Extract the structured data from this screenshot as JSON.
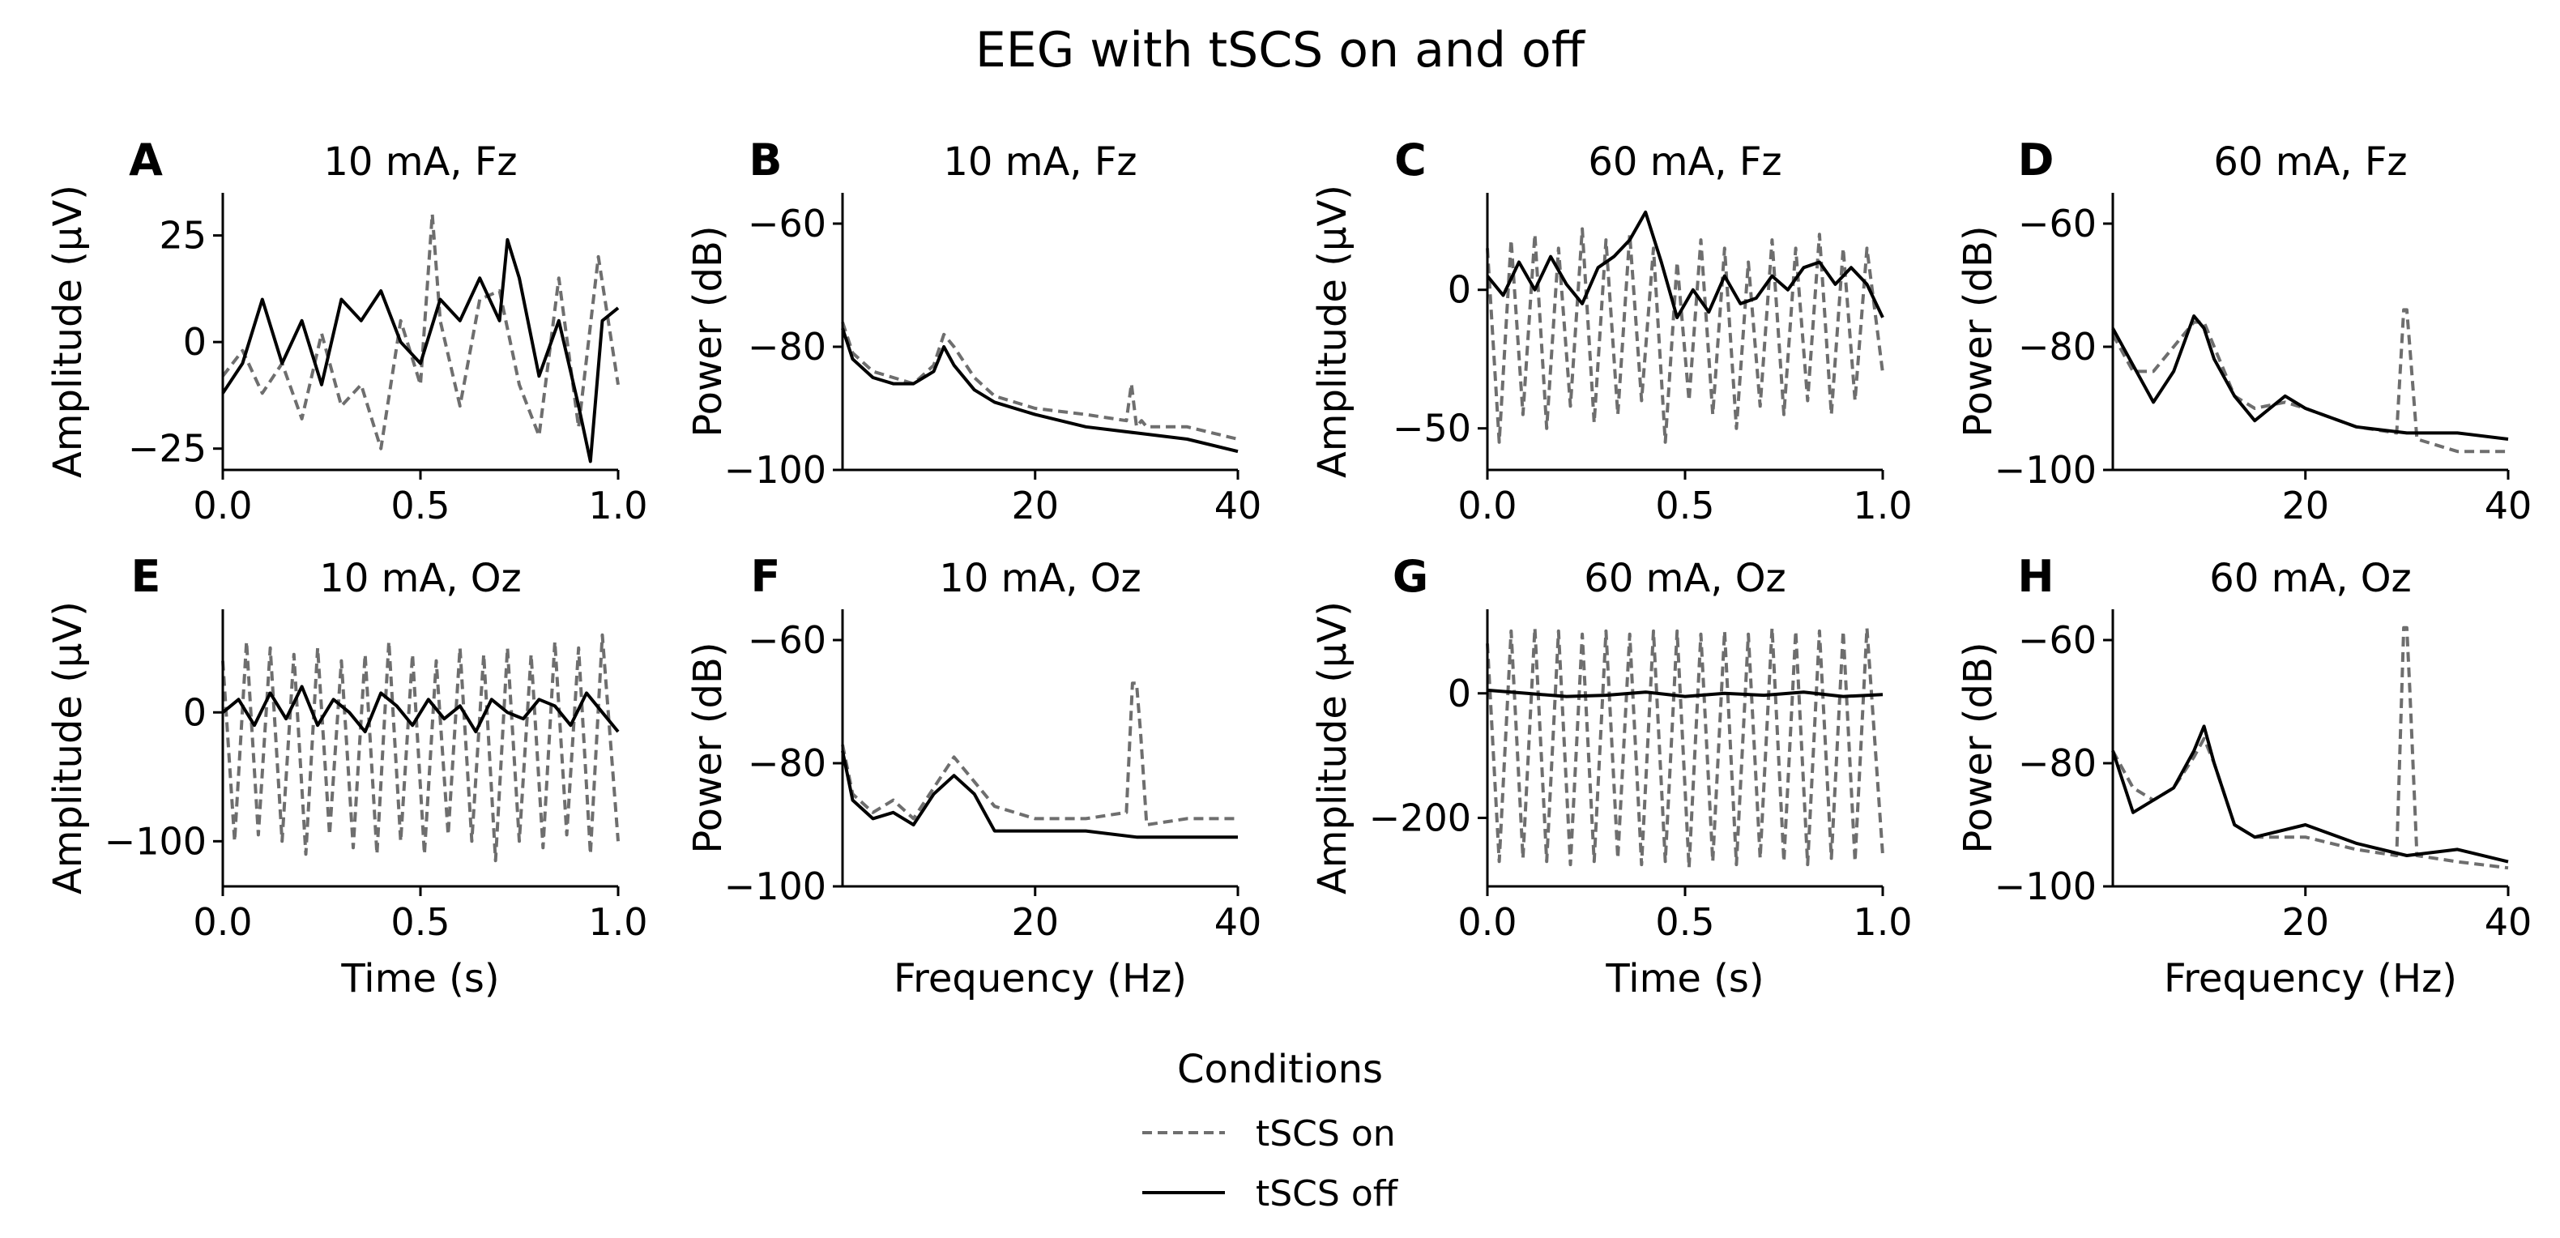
{
  "title": "EEG with tSCS on and off",
  "legend": {
    "title": "Conditions",
    "entries": [
      {
        "label": "tSCS on",
        "style": "dashed",
        "color": "#6e6e6e"
      },
      {
        "label": "tSCS off",
        "style": "solid",
        "color": "#000000"
      }
    ]
  },
  "colors": {
    "on": "#6e6e6e",
    "off": "#000000"
  },
  "chart_data": [
    {
      "panel": "A",
      "type": "line",
      "title": "10 mA, Fz",
      "signal": "time",
      "xlabel": "",
      "ylabel": "Amplitude (μV)",
      "xlim": [
        0,
        1
      ],
      "ylim": [
        -30,
        35
      ],
      "xticks": [
        0,
        0.5,
        1
      ],
      "xtick_labels": [
        "0.0",
        "0.5",
        "1.0"
      ],
      "yticks": [
        -25,
        0,
        25
      ],
      "ytick_labels": [
        "−25",
        "0",
        "25"
      ],
      "series": [
        {
          "name": "tSCS on",
          "x": [
            0,
            0.05,
            0.1,
            0.15,
            0.2,
            0.25,
            0.3,
            0.35,
            0.4,
            0.45,
            0.5,
            0.53,
            0.55,
            0.6,
            0.65,
            0.7,
            0.75,
            0.8,
            0.85,
            0.9,
            0.95,
            1.0
          ],
          "y": [
            -8,
            -2,
            -12,
            -5,
            -18,
            2,
            -15,
            -10,
            -25,
            5,
            -10,
            30,
            5,
            -15,
            10,
            12,
            -10,
            -22,
            15,
            -20,
            20,
            -10
          ]
        },
        {
          "name": "tSCS off",
          "x": [
            0,
            0.05,
            0.1,
            0.15,
            0.2,
            0.25,
            0.3,
            0.35,
            0.4,
            0.45,
            0.5,
            0.55,
            0.6,
            0.65,
            0.7,
            0.72,
            0.75,
            0.8,
            0.85,
            0.9,
            0.93,
            0.96,
            1.0
          ],
          "y": [
            -12,
            -5,
            10,
            -5,
            5,
            -10,
            10,
            5,
            12,
            0,
            -5,
            10,
            5,
            15,
            5,
            24,
            15,
            -8,
            5,
            -15,
            -28,
            5,
            8
          ]
        }
      ]
    },
    {
      "panel": "B",
      "type": "line",
      "title": "10 mA, Fz",
      "signal": "freq",
      "xlabel": "",
      "ylabel": "Power (dB)",
      "xlim": [
        1,
        40
      ],
      "ylim": [
        -100,
        -55
      ],
      "xticks": [
        20,
        40
      ],
      "xtick_labels": [
        "20",
        "40"
      ],
      "yticks": [
        -100,
        -80,
        -60
      ],
      "ytick_labels": [
        "−100",
        "−80",
        "−60"
      ],
      "series": [
        {
          "name": "tSCS on",
          "x": [
            1,
            2,
            4,
            6,
            8,
            10,
            11,
            12,
            14,
            16,
            20,
            25,
            29,
            29.5,
            30,
            30.5,
            31,
            35,
            40
          ],
          "y": [
            -76,
            -81,
            -84,
            -85,
            -86,
            -83,
            -78,
            -80,
            -85,
            -88,
            -90,
            -91,
            -92,
            -86,
            -93,
            -92,
            -93,
            -93,
            -95
          ]
        },
        {
          "name": "tSCS off",
          "x": [
            1,
            2,
            4,
            6,
            8,
            10,
            11,
            12,
            14,
            16,
            20,
            25,
            30,
            35,
            40
          ],
          "y": [
            -77,
            -82,
            -85,
            -86,
            -86,
            -84,
            -80,
            -83,
            -87,
            -89,
            -91,
            -93,
            -94,
            -95,
            -97
          ]
        }
      ]
    },
    {
      "panel": "C",
      "type": "line",
      "title": "60 mA, Fz",
      "signal": "time",
      "xlabel": "",
      "ylabel": "Amplitude (μV)",
      "xlim": [
        0,
        1
      ],
      "ylim": [
        -65,
        35
      ],
      "xticks": [
        0,
        0.5,
        1
      ],
      "xtick_labels": [
        "0.0",
        "0.5",
        "1.0"
      ],
      "yticks": [
        -50,
        0
      ],
      "ytick_labels": [
        "−50",
        "0"
      ],
      "series": [
        {
          "name": "tSCS on",
          "x": [
            0,
            0.03,
            0.06,
            0.09,
            0.12,
            0.15,
            0.18,
            0.21,
            0.24,
            0.27,
            0.3,
            0.33,
            0.36,
            0.39,
            0.42,
            0.45,
            0.48,
            0.51,
            0.54,
            0.57,
            0.6,
            0.63,
            0.66,
            0.69,
            0.72,
            0.75,
            0.78,
            0.81,
            0.84,
            0.87,
            0.9,
            0.93,
            0.96,
            1.0
          ],
          "y": [
            15,
            -55,
            18,
            -45,
            20,
            -50,
            15,
            -42,
            22,
            -48,
            18,
            -45,
            20,
            -40,
            15,
            -55,
            10,
            -40,
            18,
            -45,
            15,
            -50,
            10,
            -42,
            18,
            -45,
            15,
            -40,
            20,
            -45,
            15,
            -40,
            15,
            -30
          ]
        },
        {
          "name": "tSCS off",
          "x": [
            0,
            0.04,
            0.08,
            0.12,
            0.16,
            0.2,
            0.24,
            0.28,
            0.32,
            0.36,
            0.4,
            0.44,
            0.48,
            0.52,
            0.56,
            0.6,
            0.64,
            0.68,
            0.72,
            0.76,
            0.8,
            0.84,
            0.88,
            0.92,
            0.96,
            1.0
          ],
          "y": [
            5,
            -2,
            10,
            0,
            12,
            2,
            -5,
            8,
            12,
            18,
            28,
            10,
            -10,
            0,
            -8,
            5,
            -5,
            -3,
            5,
            0,
            8,
            10,
            2,
            8,
            2,
            -10
          ]
        }
      ]
    },
    {
      "panel": "D",
      "type": "line",
      "title": "60 mA, Fz",
      "signal": "freq",
      "xlabel": "",
      "ylabel": "Power (dB)",
      "xlim": [
        1,
        40
      ],
      "ylim": [
        -100,
        -55
      ],
      "xticks": [
        20,
        40
      ],
      "xtick_labels": [
        "20",
        "40"
      ],
      "yticks": [
        -100,
        -80,
        -60
      ],
      "ytick_labels": [
        "−100",
        "−80",
        "−60"
      ],
      "series": [
        {
          "name": "tSCS on",
          "x": [
            1,
            3,
            5,
            7,
            9,
            10,
            11,
            13,
            15,
            18,
            20,
            25,
            29,
            29.7,
            30,
            30.3,
            31,
            35,
            40
          ],
          "y": [
            -78,
            -84,
            -84,
            -80,
            -76,
            -76,
            -80,
            -88,
            -90,
            -89,
            -90,
            -93,
            -94,
            -74,
            -74,
            -80,
            -95,
            -97,
            -97
          ]
        },
        {
          "name": "tSCS off",
          "x": [
            1,
            3,
            5,
            7,
            9,
            10,
            11,
            13,
            15,
            18,
            20,
            25,
            30,
            35,
            40
          ],
          "y": [
            -77,
            -83,
            -89,
            -84,
            -75,
            -77,
            -82,
            -88,
            -92,
            -88,
            -90,
            -93,
            -94,
            -94,
            -95
          ]
        }
      ]
    },
    {
      "panel": "E",
      "type": "line",
      "title": "10 mA, Oz",
      "signal": "time",
      "xlabel": "Time (s)",
      "ylabel": "Amplitude (μV)",
      "xlim": [
        0,
        1
      ],
      "ylim": [
        -135,
        80
      ],
      "xticks": [
        0,
        0.5,
        1
      ],
      "xtick_labels": [
        "0.0",
        "0.5",
        "1.0"
      ],
      "yticks": [
        -100,
        0
      ],
      "ytick_labels": [
        "−100",
        "0"
      ],
      "series": [
        {
          "name": "tSCS on",
          "x": [
            0,
            0.03,
            0.06,
            0.09,
            0.12,
            0.15,
            0.18,
            0.21,
            0.24,
            0.27,
            0.3,
            0.33,
            0.36,
            0.39,
            0.42,
            0.45,
            0.48,
            0.51,
            0.54,
            0.57,
            0.6,
            0.63,
            0.66,
            0.69,
            0.72,
            0.75,
            0.78,
            0.81,
            0.84,
            0.87,
            0.9,
            0.93,
            0.96,
            1.0
          ],
          "y": [
            40,
            -100,
            55,
            -95,
            50,
            -100,
            45,
            -110,
            50,
            -95,
            40,
            -105,
            45,
            -110,
            55,
            -100,
            45,
            -110,
            40,
            -95,
            50,
            -100,
            45,
            -115,
            50,
            -100,
            45,
            -105,
            55,
            -95,
            50,
            -110,
            60,
            -100
          ]
        },
        {
          "name": "tSCS off",
          "x": [
            0,
            0.04,
            0.08,
            0.12,
            0.16,
            0.2,
            0.24,
            0.28,
            0.32,
            0.36,
            0.4,
            0.44,
            0.48,
            0.52,
            0.56,
            0.6,
            0.64,
            0.68,
            0.72,
            0.76,
            0.8,
            0.84,
            0.88,
            0.92,
            0.96,
            1.0
          ],
          "y": [
            0,
            10,
            -10,
            15,
            -5,
            20,
            -10,
            10,
            0,
            -15,
            15,
            5,
            -10,
            10,
            -5,
            5,
            -15,
            10,
            0,
            -5,
            10,
            5,
            -10,
            15,
            0,
            -15
          ]
        }
      ]
    },
    {
      "panel": "F",
      "type": "line",
      "title": "10 mA, Oz",
      "signal": "freq",
      "xlabel": "Frequency (Hz)",
      "ylabel": "Power (dB)",
      "xlim": [
        1,
        40
      ],
      "ylim": [
        -100,
        -55
      ],
      "xticks": [
        20,
        40
      ],
      "xtick_labels": [
        "20",
        "40"
      ],
      "yticks": [
        -100,
        -80,
        -60
      ],
      "ytick_labels": [
        "−100",
        "−80",
        "−60"
      ],
      "series": [
        {
          "name": "tSCS on",
          "x": [
            1,
            2,
            4,
            6,
            8,
            10,
            12,
            14,
            16,
            20,
            25,
            29,
            29.6,
            30,
            30.4,
            31,
            35,
            40
          ],
          "y": [
            -77,
            -85,
            -88,
            -86,
            -89,
            -84,
            -79,
            -83,
            -87,
            -89,
            -89,
            -88,
            -67,
            -67,
            -75,
            -90,
            -89,
            -89
          ]
        },
        {
          "name": "tSCS off",
          "x": [
            1,
            2,
            4,
            6,
            8,
            10,
            12,
            14,
            16,
            20,
            25,
            30,
            35,
            40
          ],
          "y": [
            -78,
            -86,
            -89,
            -88,
            -90,
            -85,
            -82,
            -85,
            -91,
            -91,
            -91,
            -92,
            -92,
            -92
          ]
        }
      ]
    },
    {
      "panel": "G",
      "type": "line",
      "title": "60 mA, Oz",
      "signal": "time",
      "xlabel": "Time (s)",
      "ylabel": "Amplitude (μV)",
      "xlim": [
        0,
        1
      ],
      "ylim": [
        -310,
        135
      ],
      "xticks": [
        0,
        0.5,
        1
      ],
      "xtick_labels": [
        "0.0",
        "0.5",
        "1.0"
      ],
      "yticks": [
        -200,
        0
      ],
      "ytick_labels": [
        "−200",
        "0"
      ],
      "series": [
        {
          "name": "tSCS on",
          "x": [
            0,
            0.03,
            0.06,
            0.09,
            0.12,
            0.15,
            0.18,
            0.21,
            0.24,
            0.27,
            0.3,
            0.33,
            0.36,
            0.39,
            0.42,
            0.45,
            0.48,
            0.51,
            0.54,
            0.57,
            0.6,
            0.63,
            0.66,
            0.69,
            0.72,
            0.75,
            0.78,
            0.81,
            0.84,
            0.87,
            0.9,
            0.93,
            0.96,
            1.0
          ],
          "y": [
            80,
            -270,
            100,
            -265,
            105,
            -270,
            100,
            -275,
            95,
            -270,
            100,
            -265,
            95,
            -275,
            100,
            -270,
            100,
            -280,
            95,
            -270,
            100,
            -275,
            95,
            -265,
            105,
            -270,
            100,
            -275,
            100,
            -265,
            100,
            -270,
            105,
            -260
          ]
        },
        {
          "name": "tSCS off",
          "x": [
            0,
            0.1,
            0.2,
            0.3,
            0.4,
            0.5,
            0.6,
            0.7,
            0.8,
            0.9,
            1.0
          ],
          "y": [
            5,
            0,
            -5,
            -3,
            2,
            -5,
            0,
            -3,
            2,
            -5,
            -2
          ]
        }
      ]
    },
    {
      "panel": "H",
      "type": "line",
      "title": "60 mA, Oz",
      "signal": "freq",
      "xlabel": "Frequency (Hz)",
      "ylabel": "Power (dB)",
      "xlim": [
        1,
        40
      ],
      "ylim": [
        -100,
        -55
      ],
      "xticks": [
        20,
        40
      ],
      "xtick_labels": [
        "20",
        "40"
      ],
      "yticks": [
        -100,
        -80,
        -60
      ],
      "ytick_labels": [
        "−100",
        "−80",
        "−60"
      ],
      "series": [
        {
          "name": "tSCS on",
          "x": [
            1,
            3,
            5,
            7,
            9,
            10,
            11,
            13,
            15,
            20,
            25,
            29,
            29.7,
            30,
            30.3,
            31,
            35,
            40
          ],
          "y": [
            -78,
            -84,
            -86,
            -84,
            -79,
            -76,
            -80,
            -90,
            -92,
            -92,
            -94,
            -95,
            -58,
            -58,
            -68,
            -95,
            -96,
            -97
          ]
        },
        {
          "name": "tSCS off",
          "x": [
            1,
            3,
            5,
            7,
            9,
            10,
            11,
            13,
            15,
            20,
            25,
            30,
            35,
            40
          ],
          "y": [
            -78,
            -88,
            -86,
            -84,
            -78,
            -74,
            -80,
            -90,
            -92,
            -90,
            -93,
            -95,
            -94,
            -96
          ]
        }
      ]
    }
  ]
}
